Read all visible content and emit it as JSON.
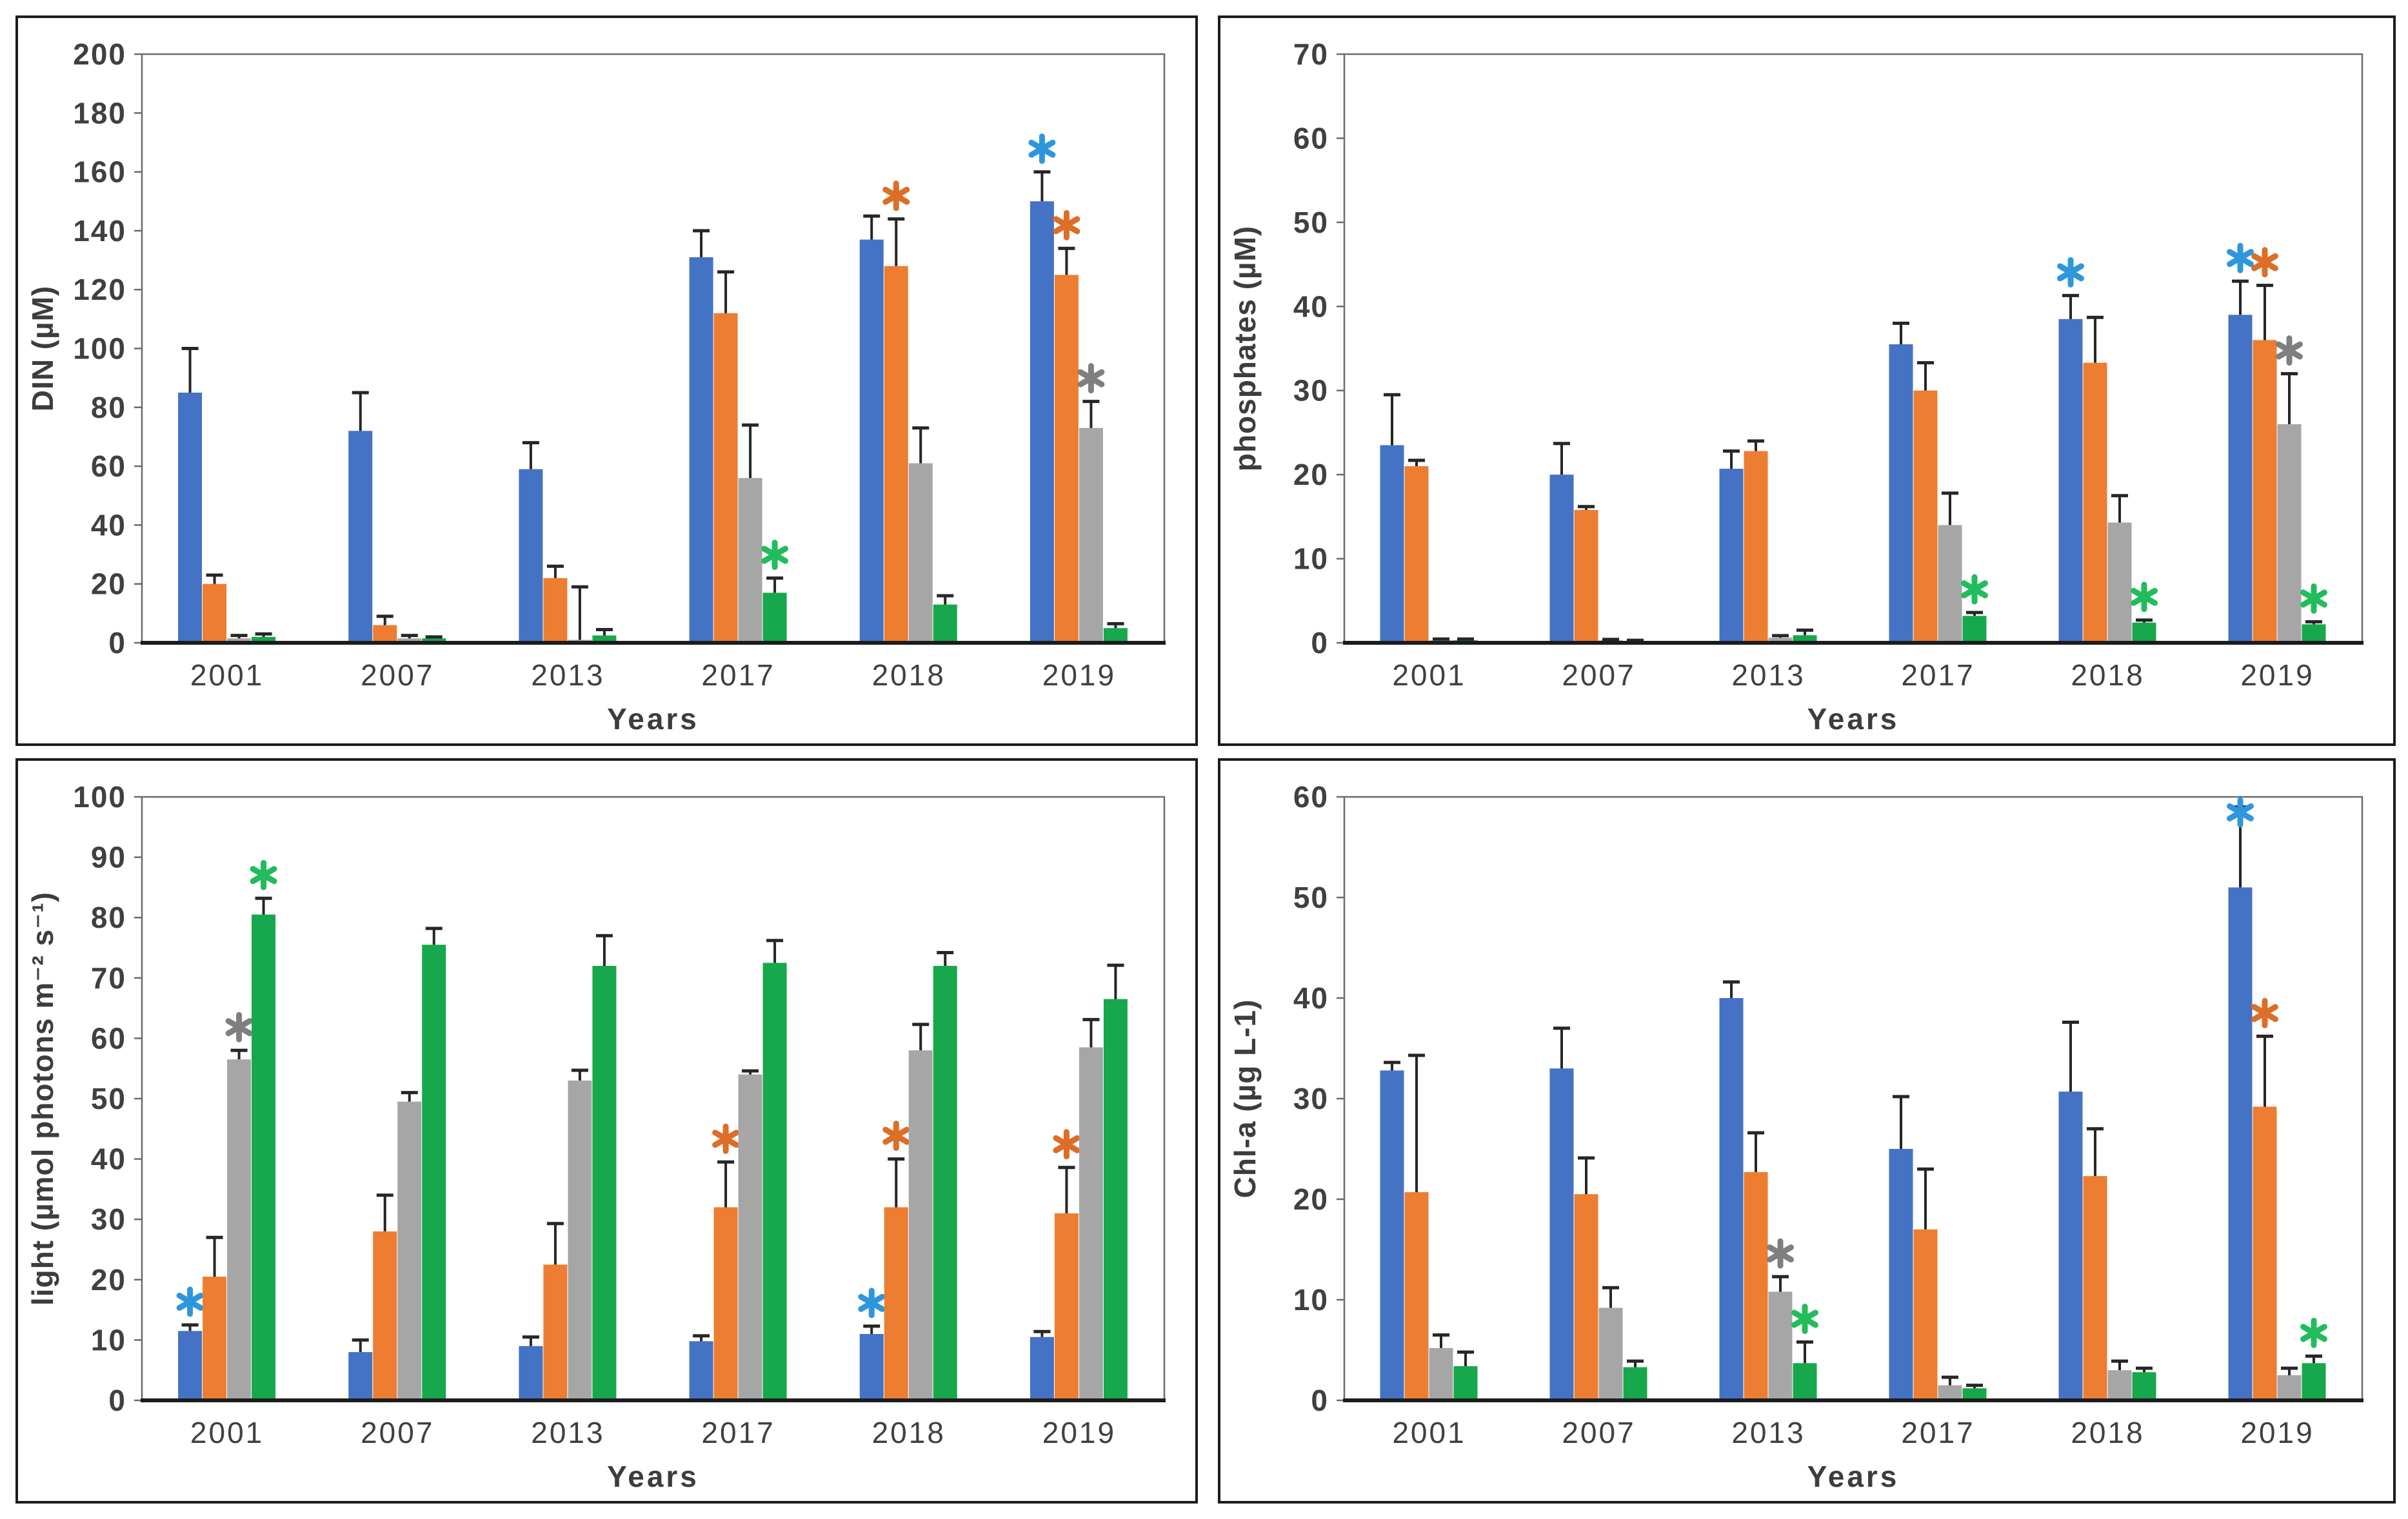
{
  "page": {
    "background": "#ffffff"
  },
  "palette": {
    "bar_blue": "#4472C4",
    "bar_orange": "#ED7D31",
    "bar_gray": "#A6A6A6",
    "bar_green": "#17A74C",
    "asterisk_blue": "#2E97DC",
    "asterisk_orange": "#DC6E28",
    "asterisk_gray": "#7F7F7F",
    "asterisk_green": "#22BC5C",
    "error_bar": "#262626",
    "axis_line": "#1c1c1c",
    "plot_border": "#6b6b6b",
    "tick_text": "#404040",
    "label_text": "#3d3d3d"
  },
  "chart_data": [
    {
      "id": "din",
      "type": "bar",
      "title": "",
      "ylabel": "DIN (µM)",
      "xlabel": "Years",
      "ylim": [
        0,
        200
      ],
      "ytick_step": 20,
      "grid": false,
      "legend": "none",
      "categories": [
        "2001",
        "2007",
        "2013",
        "2017",
        "2018",
        "2019"
      ],
      "series": [
        {
          "name": "blue",
          "color": "#4472C4",
          "asterisk_color": "#2E97DC",
          "values": [
            85,
            72,
            59,
            131,
            137,
            150
          ],
          "errors": [
            15,
            13,
            9,
            9,
            8,
            10
          ],
          "asterisks": [
            0,
            0,
            0,
            0,
            0,
            1
          ]
        },
        {
          "name": "orange",
          "color": "#ED7D31",
          "asterisk_color": "#DC6E28",
          "values": [
            20,
            6,
            22,
            112,
            128,
            125
          ],
          "errors": [
            3,
            3,
            4,
            14,
            16,
            9
          ],
          "asterisks": [
            0,
            0,
            0,
            0,
            1,
            1
          ]
        },
        {
          "name": "gray",
          "color": "#A6A6A6",
          "asterisk_color": "#7F7F7F",
          "values": [
            1.5,
            1.5,
            1,
            56,
            61,
            73
          ],
          "errors": [
            1,
            1,
            18,
            18,
            12,
            9
          ],
          "asterisks": [
            0,
            0,
            0,
            0,
            0,
            1
          ]
        },
        {
          "name": "green",
          "color": "#17A74C",
          "asterisk_color": "#22BC5C",
          "values": [
            2,
            1.5,
            2.5,
            17,
            13,
            5
          ],
          "errors": [
            1,
            0.5,
            2,
            5,
            3,
            1.5
          ],
          "asterisks": [
            0,
            0,
            0,
            1,
            0,
            0
          ]
        }
      ]
    },
    {
      "id": "phosphates",
      "type": "bar",
      "title": "",
      "ylabel": "phosphates (µM)",
      "xlabel": "Years",
      "ylim": [
        0,
        70
      ],
      "ytick_step": 10,
      "grid": false,
      "legend": "none",
      "categories": [
        "2001",
        "2007",
        "2013",
        "2017",
        "2018",
        "2019"
      ],
      "series": [
        {
          "name": "blue",
          "color": "#4472C4",
          "asterisk_color": "#2E97DC",
          "values": [
            23.5,
            20,
            20.7,
            35.5,
            38.5,
            39
          ],
          "errors": [
            6,
            3.7,
            2.1,
            2.5,
            2.8,
            4
          ],
          "asterisks": [
            0,
            0,
            0,
            0,
            1,
            1
          ]
        },
        {
          "name": "orange",
          "color": "#ED7D31",
          "asterisk_color": "#DC6E28",
          "values": [
            21,
            15.8,
            22.8,
            30,
            33.3,
            36
          ],
          "errors": [
            0.7,
            0.4,
            1.2,
            3.3,
            5.4,
            6.5
          ],
          "asterisks": [
            0,
            0,
            0,
            0,
            0,
            1
          ]
        },
        {
          "name": "gray",
          "color": "#A6A6A6",
          "asterisk_color": "#7F7F7F",
          "values": [
            0.3,
            0.3,
            0.6,
            14,
            14.3,
            26
          ],
          "errors": [
            0.15,
            0.1,
            0.25,
            3.8,
            3.2,
            6
          ],
          "asterisks": [
            0,
            0,
            0,
            0,
            0,
            1
          ]
        },
        {
          "name": "green",
          "color": "#17A74C",
          "asterisk_color": "#22BC5C",
          "values": [
            0.3,
            0.2,
            0.9,
            3.2,
            2.4,
            2.2
          ],
          "errors": [
            0.15,
            0.1,
            0.6,
            0.4,
            0.3,
            0.3
          ],
          "asterisks": [
            0,
            0,
            0,
            1,
            1,
            1
          ]
        }
      ]
    },
    {
      "id": "light",
      "type": "bar",
      "title": "",
      "ylabel": "light (µmol photons m⁻² s⁻¹)",
      "xlabel": "Years",
      "ylim": [
        0,
        100
      ],
      "ytick_step": 10,
      "grid": false,
      "legend": "none",
      "categories": [
        "2001",
        "2007",
        "2013",
        "2017",
        "2018",
        "2019"
      ],
      "series": [
        {
          "name": "blue",
          "color": "#4472C4",
          "asterisk_color": "#2E97DC",
          "values": [
            11.5,
            8,
            9,
            9.8,
            11,
            10.5
          ],
          "errors": [
            1,
            2,
            1.5,
            0.9,
            1.3,
            0.9
          ],
          "asterisks": [
            1,
            0,
            0,
            0,
            1,
            0
          ]
        },
        {
          "name": "orange",
          "color": "#ED7D31",
          "asterisk_color": "#DC6E28",
          "values": [
            20.5,
            28,
            22.5,
            32,
            32,
            31
          ],
          "errors": [
            6.5,
            6,
            6.8,
            7.5,
            8,
            7.6
          ],
          "asterisks": [
            0,
            0,
            0,
            1,
            1,
            1
          ]
        },
        {
          "name": "gray",
          "color": "#A6A6A6",
          "asterisk_color": "#7F7F7F",
          "values": [
            56.5,
            49.5,
            53,
            54,
            58,
            58.5
          ],
          "errors": [
            1.5,
            1.5,
            1.7,
            0.6,
            4.3,
            4.6
          ],
          "asterisks": [
            1,
            0,
            0,
            0,
            0,
            0
          ]
        },
        {
          "name": "green",
          "color": "#17A74C",
          "asterisk_color": "#22BC5C",
          "values": [
            80.5,
            75.5,
            72,
            72.5,
            72,
            66.5
          ],
          "errors": [
            2.7,
            2.7,
            5,
            3.7,
            2.2,
            5.6
          ],
          "asterisks": [
            1,
            0,
            0,
            0,
            0,
            0
          ]
        }
      ]
    },
    {
      "id": "chla",
      "type": "bar",
      "title": "",
      "ylabel": "Chl-a  (µg L-1)",
      "xlabel": "Years",
      "ylim": [
        0,
        60
      ],
      "ytick_step": 10,
      "grid": false,
      "legend": "none",
      "categories": [
        "2001",
        "2007",
        "2013",
        "2017",
        "2018",
        "2019"
      ],
      "series": [
        {
          "name": "blue",
          "color": "#4472C4",
          "asterisk_color": "#2E97DC",
          "values": [
            32.8,
            33,
            40,
            25,
            30.7,
            51
          ],
          "errors": [
            0.8,
            4,
            1.6,
            5.2,
            6.9,
            8
          ],
          "asterisks": [
            0,
            0,
            0,
            0,
            0,
            1
          ]
        },
        {
          "name": "orange",
          "color": "#ED7D31",
          "asterisk_color": "#DC6E28",
          "values": [
            20.7,
            20.5,
            22.7,
            17,
            22.3,
            29.2
          ],
          "errors": [
            13.6,
            3.6,
            3.9,
            6,
            4.7,
            7
          ],
          "asterisks": [
            0,
            0,
            0,
            0,
            0,
            1
          ]
        },
        {
          "name": "gray",
          "color": "#A6A6A6",
          "asterisk_color": "#7F7F7F",
          "values": [
            5.2,
            9.2,
            10.8,
            1.5,
            3,
            2.5
          ],
          "errors": [
            1.3,
            2,
            1.5,
            0.8,
            0.9,
            0.7
          ],
          "asterisks": [
            0,
            0,
            1,
            0,
            0,
            0
          ]
        },
        {
          "name": "green",
          "color": "#17A74C",
          "asterisk_color": "#22BC5C",
          "values": [
            3.4,
            3.3,
            3.7,
            1.2,
            2.8,
            3.7
          ],
          "errors": [
            1.4,
            0.6,
            2.1,
            0.3,
            0.4,
            0.7
          ],
          "asterisks": [
            0,
            0,
            1,
            0,
            0,
            1
          ]
        }
      ]
    }
  ]
}
